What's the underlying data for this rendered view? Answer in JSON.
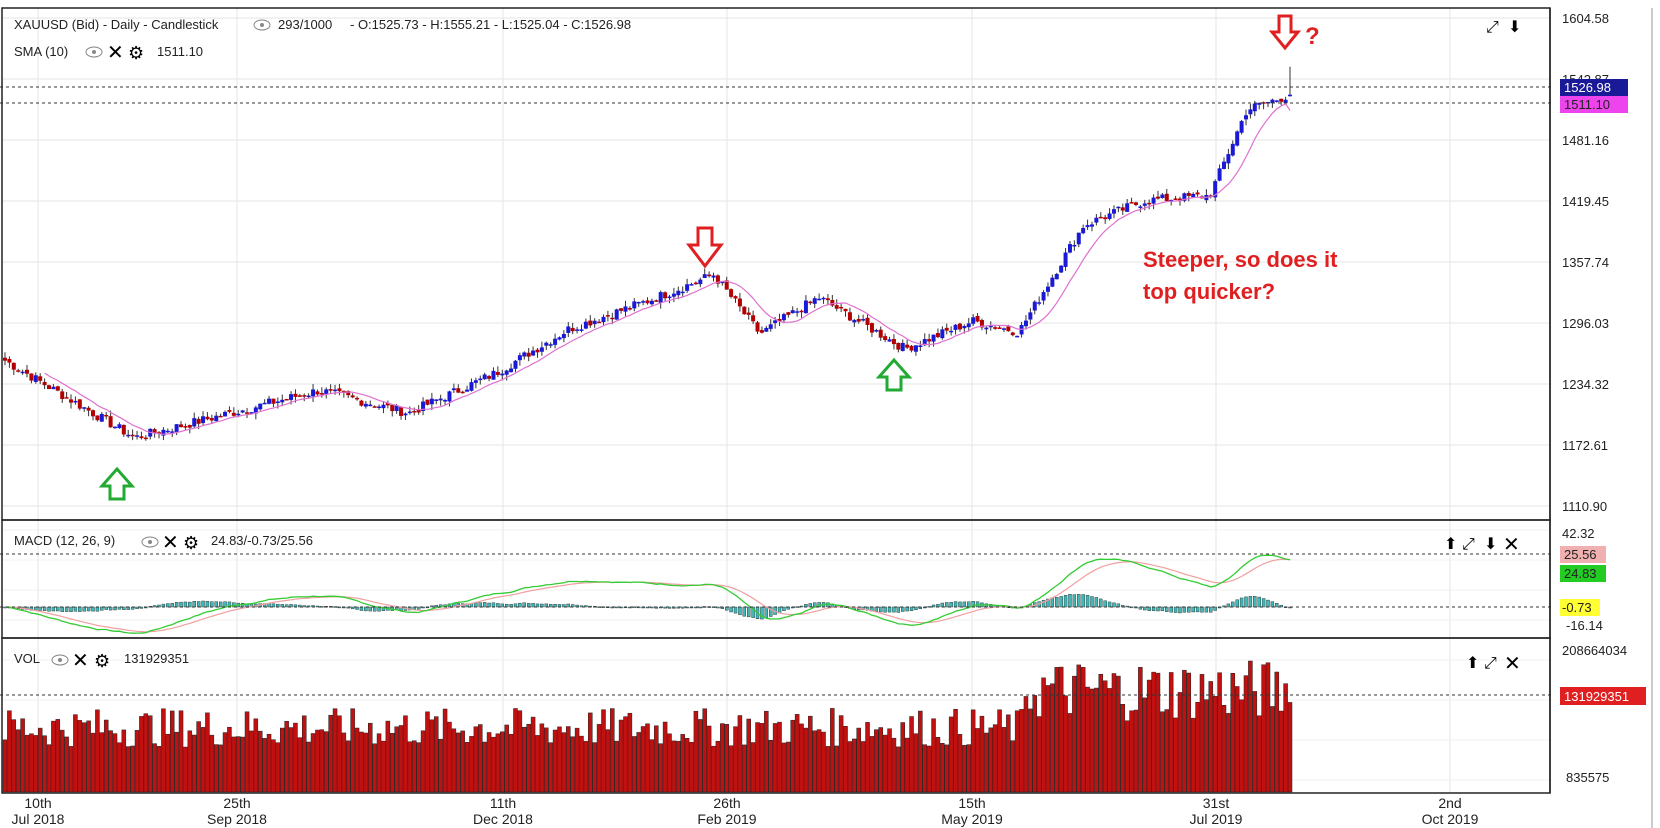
{
  "header": {
    "title": "XAUUSD (Bid) - Daily - Candlestick",
    "counter": "293/1000",
    "ohlc": "- O:1525.73 - H:1555.21 - L:1525.04 - C:1526.98",
    "sma_label": "SMA (10)",
    "sma_value": "1511.10"
  },
  "price_axis": [
    "1604.58",
    "1542.87",
    "1481.16",
    "1419.45",
    "1357.74",
    "1296.03",
    "1234.32",
    "1172.61",
    "1110.90"
  ],
  "badges": {
    "last": "1526.98",
    "sma": "1511.10",
    "macd_signal": "25.56",
    "macd_line": "24.83",
    "macd_hist": "-0.73",
    "volume": "131929351"
  },
  "annotation": {
    "line1": "Steeper, so does it",
    "line2": "top quicker?",
    "question": "?"
  },
  "macd": {
    "label": "MACD (12, 26, 9)",
    "values": "24.83/-0.73/25.56",
    "axis_top": "42.32",
    "axis_bottom": "-16.14"
  },
  "volume": {
    "label": "VOL",
    "value": "131929351",
    "axis_top": "208664034",
    "axis_bottom": "835575"
  },
  "date_axis": [
    {
      "day": "10th",
      "month": "Jul 2018"
    },
    {
      "day": "25th",
      "month": "Sep 2018"
    },
    {
      "day": "11th",
      "month": "Dec 2018"
    },
    {
      "day": "26th",
      "month": "Feb 2019"
    },
    {
      "day": "15th",
      "month": "May 2019"
    },
    {
      "day": "31st",
      "month": "Jul 2019"
    },
    {
      "day": "2nd",
      "month": "Oct 2019"
    }
  ],
  "colors": {
    "up": "#1a1ad6",
    "down": "#b30000",
    "sma": "#e070d0",
    "macd": "#33cc33",
    "signal": "#f0a0a0",
    "hist": "#40b8b8",
    "arrow_down": "#e02020",
    "arrow_up": "#22aa33",
    "text_red": "#e02020"
  },
  "chart_data": {
    "type": "candlestick",
    "instrument": "XAUUSD (Bid)",
    "timeframe": "Daily",
    "approx_close_path": [
      {
        "date": "2018-07-05",
        "close": 1258
      },
      {
        "date": "2018-07-20",
        "close": 1230
      },
      {
        "date": "2018-08-16",
        "close": 1180
      },
      {
        "date": "2018-09-10",
        "close": 1200
      },
      {
        "date": "2018-10-15",
        "close": 1228
      },
      {
        "date": "2018-11-13",
        "close": 1205
      },
      {
        "date": "2018-12-11",
        "close": 1245
      },
      {
        "date": "2019-01-04",
        "close": 1290
      },
      {
        "date": "2019-01-31",
        "close": 1320
      },
      {
        "date": "2019-02-20",
        "close": 1345
      },
      {
        "date": "2019-03-07",
        "close": 1285
      },
      {
        "date": "2019-03-26",
        "close": 1322
      },
      {
        "date": "2019-04-23",
        "close": 1270
      },
      {
        "date": "2019-05-15",
        "close": 1298
      },
      {
        "date": "2019-05-30",
        "close": 1287
      },
      {
        "date": "2019-06-20",
        "close": 1395
      },
      {
        "date": "2019-07-10",
        "close": 1420
      },
      {
        "date": "2019-07-31",
        "close": 1425
      },
      {
        "date": "2019-08-12",
        "close": 1512
      },
      {
        "date": "2019-08-26",
        "close": 1526.98
      }
    ],
    "last_candle": {
      "open": 1525.73,
      "high": 1555.21,
      "low": 1525.04,
      "close": 1526.98
    },
    "sma10_last": 1511.1,
    "ylim": [
      1110.9,
      1604.58
    ],
    "macd": {
      "macd": 24.83,
      "hist": -0.73,
      "signal": 25.56,
      "ylim": [
        -16.14,
        42.32
      ]
    },
    "volume_last": 131929351,
    "volume_ylim": [
      835575,
      208664034
    ]
  }
}
